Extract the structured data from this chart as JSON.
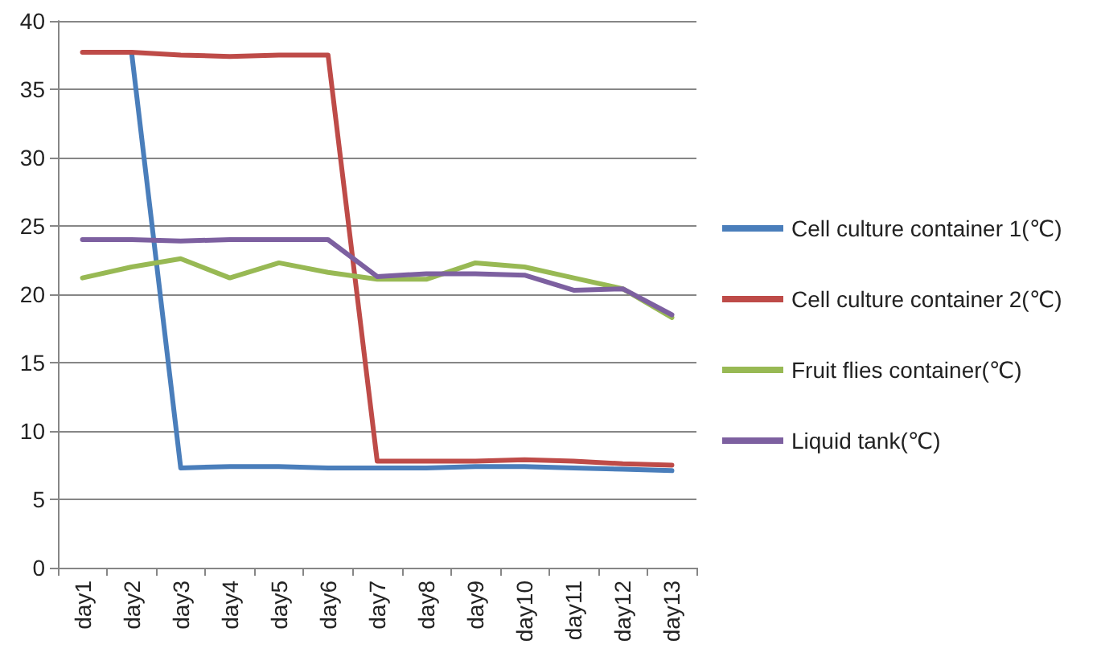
{
  "chart_data": {
    "type": "line",
    "categories": [
      "day1",
      "day2",
      "day3",
      "day4",
      "day5",
      "day6",
      "day7",
      "day8",
      "day9",
      "day10",
      "day11",
      "day12",
      "day13"
    ],
    "series": [
      {
        "name": "Cell culture container 1(℃)",
        "color": "#4a7ebb",
        "values": [
          null,
          37.7,
          7.3,
          7.4,
          7.4,
          7.3,
          7.3,
          7.3,
          7.4,
          7.4,
          7.3,
          7.2,
          7.1
        ]
      },
      {
        "name": "Cell culture container 2(℃)",
        "color": "#be4b48",
        "values": [
          37.7,
          37.7,
          37.5,
          37.4,
          37.5,
          37.5,
          7.8,
          7.8,
          7.8,
          7.9,
          7.8,
          7.6,
          7.5
        ]
      },
      {
        "name": "Fruit flies container(℃)",
        "color": "#98b954",
        "values": [
          21.2,
          22.0,
          22.6,
          21.2,
          22.3,
          21.6,
          21.1,
          21.1,
          22.3,
          22.0,
          21.2,
          20.4,
          18.3
        ]
      },
      {
        "name": "Liquid tank(℃)",
        "color": "#7d60a0",
        "values": [
          24.0,
          24.0,
          23.9,
          24.0,
          24.0,
          24.0,
          21.3,
          21.5,
          21.5,
          21.4,
          20.3,
          20.4,
          18.5
        ]
      }
    ],
    "ylim": [
      0,
      40
    ],
    "yticks": [
      0,
      5,
      10,
      15,
      20,
      25,
      30,
      35,
      40
    ],
    "grid": "y",
    "legend": "right",
    "marker": "none",
    "line_style": "solid"
  }
}
